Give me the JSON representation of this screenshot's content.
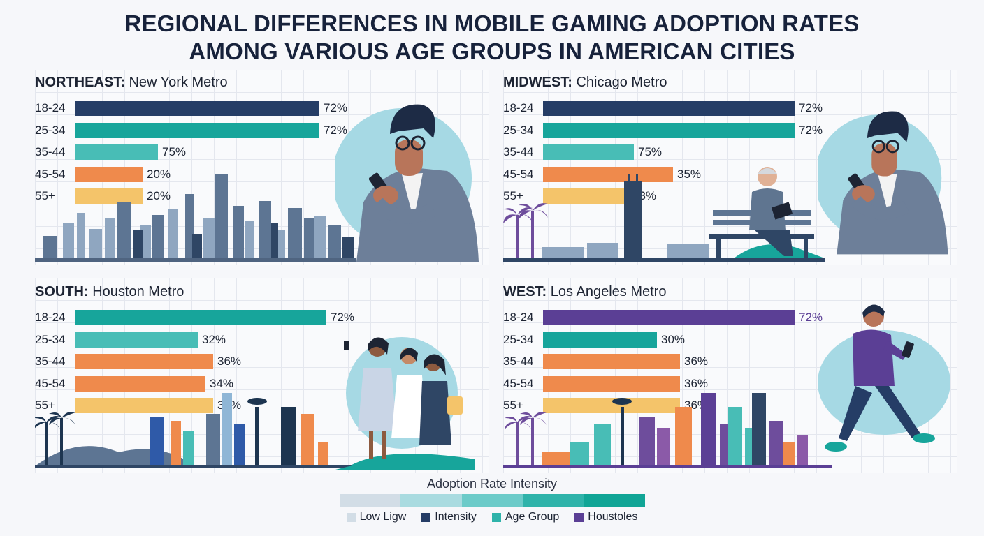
{
  "title_line1": "REGIONAL DIFFERENCES IN MOBILE GAMING ADOPTION RATES",
  "title_line2": "AMONG VARIOUS AGE GROUPS IN AMERICAN CITIES",
  "chart_data": [
    {
      "type": "bar",
      "orientation": "horizontal",
      "region": "NORTHEAST:",
      "metro": "New York Metro",
      "categories": [
        "18-24",
        "25-34",
        "35-44",
        "45-54",
        "55+"
      ],
      "values": [
        72,
        72,
        75,
        20,
        20
      ],
      "labels": [
        "72%",
        "72%",
        "75%",
        "20%",
        "20%"
      ],
      "colors": [
        "#253d66",
        "#17a59b",
        "#48bdb6",
        "#ef8a4c",
        "#f4c46a"
      ],
      "scale_max_value": 72,
      "scale_max_width": 350
    },
    {
      "type": "bar",
      "orientation": "horizontal",
      "region": "MIDWEST:",
      "metro": "Chicago Metro",
      "categories": [
        "18-24",
        "25-34",
        "35-44",
        "45-54",
        "55+"
      ],
      "values": [
        72,
        72,
        75,
        35,
        23
      ],
      "labels": [
        "72%",
        "72%",
        "75%",
        "35%",
        "23%"
      ],
      "colors": [
        "#253d66",
        "#17a59b",
        "#48bdb6",
        "#ef8a4c",
        "#f4c46a"
      ],
      "scale_max_value": 72,
      "scale_max_width": 383
    },
    {
      "type": "bar",
      "orientation": "horizontal",
      "region": "SOUTH:",
      "metro": "Houston Metro",
      "categories": [
        "18-24",
        "25-34",
        "35-44",
        "45-54",
        "55+"
      ],
      "values": [
        72,
        32,
        36,
        34,
        36
      ],
      "labels": [
        "72%",
        "32%",
        "36%",
        "34%",
        "36%"
      ],
      "colors": [
        "#17a59b",
        "#48bdb6",
        "#ef8a4c",
        "#ef8a4c",
        "#f4c46a"
      ],
      "scale_max_value": 72,
      "scale_max_width": 396
    },
    {
      "type": "bar",
      "orientation": "horizontal",
      "region": "WEST:",
      "metro": "Los Angeles Metro",
      "categories": [
        "18-24",
        "25-34",
        "35-44",
        "45-54",
        "55+"
      ],
      "values": [
        72,
        30,
        36,
        36,
        36
      ],
      "labels": [
        "72%",
        "30%",
        "36%",
        "36%",
        "36%"
      ],
      "colors": [
        "#5b3f95",
        "#17a59b",
        "#ef8a4c",
        "#ef8a4c",
        "#f4c46a"
      ],
      "scale_max_value": 72,
      "scale_max_width": 392
    }
  ],
  "legend": {
    "title": "Adoption Rate Intensity",
    "scale_colors": [
      "#d2dde6",
      "#a9dbe0",
      "#6ccbc9",
      "#2fb3aa",
      "#11a596"
    ],
    "items": [
      {
        "label": "Low Ligw",
        "color": "#d2dde6"
      },
      {
        "label": "Intensity",
        "color": "#253d66"
      },
      {
        "label": "Age Group",
        "color": "#2fb3aa"
      },
      {
        "label": "Houstoles",
        "color": "#5b3f95"
      }
    ]
  }
}
